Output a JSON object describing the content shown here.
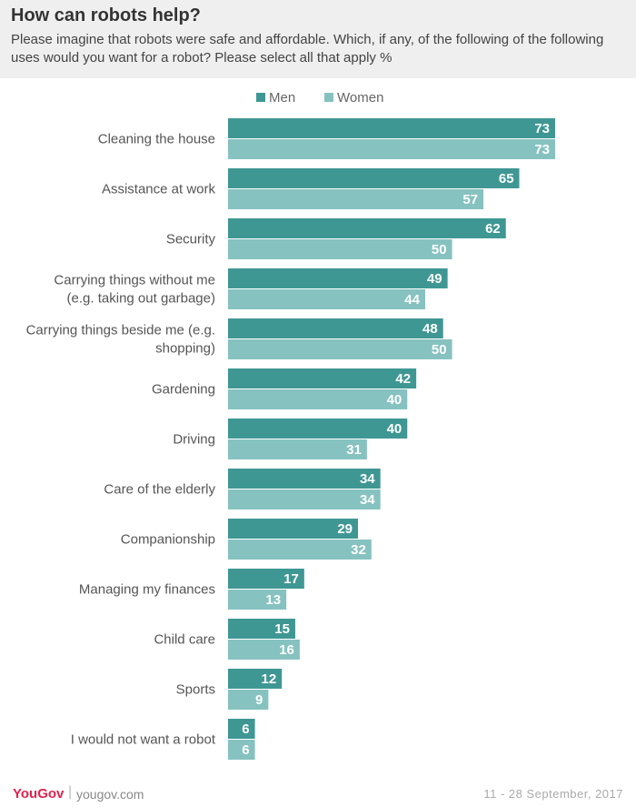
{
  "header": {
    "title": "How can robots help?",
    "subtitle": "Please imagine that robots were safe and affordable. Which, if any, of the following of the following uses would you want for a robot? Please select all that apply %"
  },
  "chart_data": {
    "type": "bar",
    "orientation": "horizontal",
    "categories": [
      "Cleaning the house",
      "Assistance at work",
      "Security",
      "Carrying things without me (e.g. taking out garbage)",
      "Carrying things beside me (e.g. shopping)",
      "Gardening",
      "Driving",
      "Care of the elderly",
      "Companionship",
      "Managing my finances",
      "Child care",
      "Sports",
      "I would not want a robot"
    ],
    "category_lines": [
      [
        "Cleaning the house"
      ],
      [
        "Assistance at work"
      ],
      [
        "Security"
      ],
      [
        "Carrying things without me",
        "(e.g. taking out garbage)"
      ],
      [
        "Carrying things beside me (e.g.",
        "shopping)"
      ],
      [
        "Gardening"
      ],
      [
        "Driving"
      ],
      [
        "Care of the elderly"
      ],
      [
        "Companionship"
      ],
      [
        "Managing my finances"
      ],
      [
        "Child care"
      ],
      [
        "Sports"
      ],
      [
        "I would not want a robot"
      ]
    ],
    "series": [
      {
        "name": "Men",
        "color": "#3f9794",
        "values": [
          73,
          65,
          62,
          49,
          48,
          42,
          40,
          34,
          29,
          17,
          15,
          12,
          6
        ]
      },
      {
        "name": "Women",
        "color": "#86c2c0",
        "values": [
          73,
          57,
          50,
          44,
          50,
          40,
          31,
          34,
          32,
          13,
          16,
          9,
          6
        ]
      }
    ],
    "xlim": [
      0,
      100
    ],
    "legend_position": "top",
    "grid": false
  },
  "footer": {
    "logo": "YouGov",
    "separator": "|",
    "site": "yougov.com",
    "date": "11 - 28 September, 2017"
  }
}
